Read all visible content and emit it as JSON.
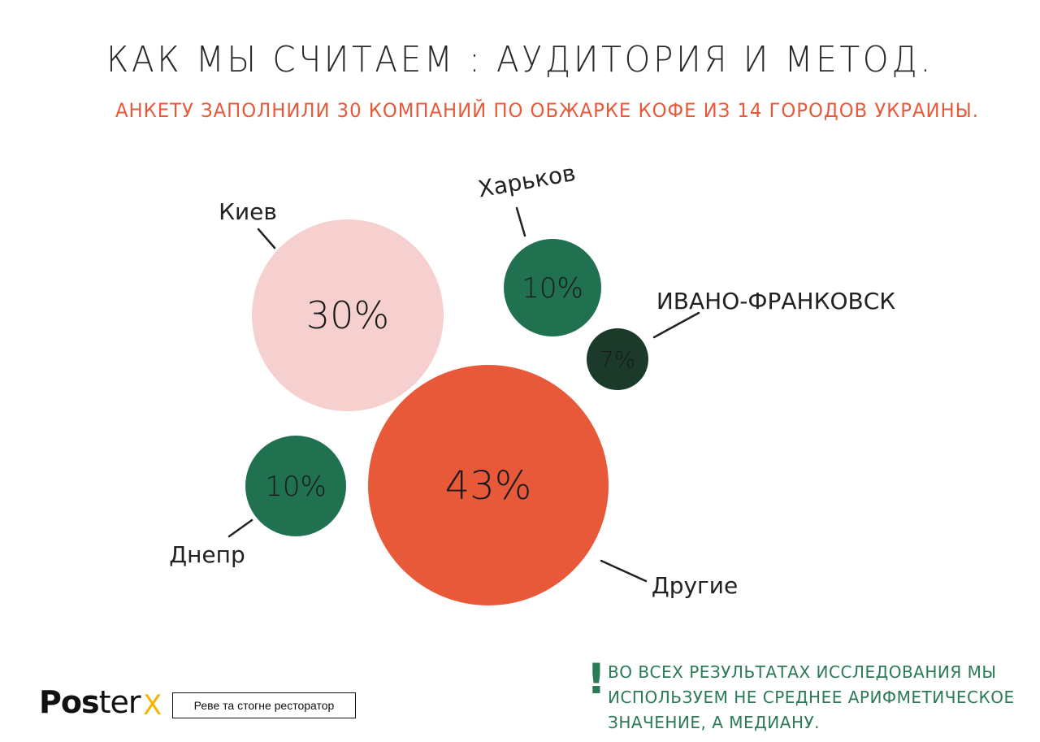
{
  "header": {
    "title": "КАК МЫ СЧИТАЕМ : АУДИТОРИЯ И МЕТОД.",
    "subtitle": "АНКЕТУ ЗАПОЛНИЛИ 30 КОМПАНИЙ ПО ОБЖАРКЕ КОФЕ ИЗ 14 ГОРОДОВ УКРАИНЫ."
  },
  "chart_data": {
    "type": "bubble",
    "title": "КАК МЫ СЧИТАЕМ : АУДИТОРИЯ И МЕТОД.",
    "unit": "%",
    "series": [
      {
        "name": "Киев",
        "value": 30,
        "label": "30%",
        "color": "#f6d0cf"
      },
      {
        "name": "Харьков",
        "value": 10,
        "label": "10%",
        "color": "#1f7150"
      },
      {
        "name": "ИВАНО-ФРАНКОВСК",
        "value": 7,
        "label": "7%",
        "color": "#1b3a2a"
      },
      {
        "name": "Днепр",
        "value": 10,
        "label": "10%",
        "color": "#1f7150"
      },
      {
        "name": "Другие",
        "value": 43,
        "label": "43%",
        "color": "#e8593a"
      }
    ]
  },
  "note": {
    "mark": "!",
    "text": "ВО ВСЕХ РЕЗУЛЬТАТАХ ИССЛЕДОВАНИЯ МЫ ИСПОЛЬЗУЕМ НЕ СРЕДНЕЕ АРИФМЕТИЧЕСКОЕ ЗНАЧЕНИЕ, А МЕДИАНУ."
  },
  "footer": {
    "logo_bold": "Pos",
    "logo_thin": "ter",
    "logo_x": "X",
    "tagline": "Реве та стогне ресторатор"
  }
}
